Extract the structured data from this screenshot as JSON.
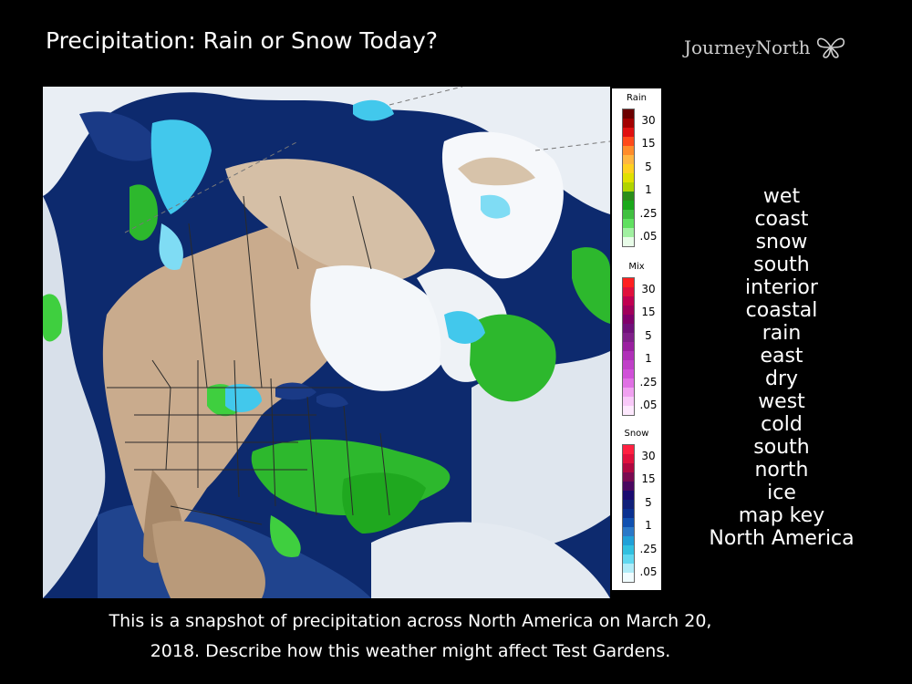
{
  "title": "Precipitation: Rain or Snow Today?",
  "logo": {
    "text": "JourneyNorth",
    "icon": "butterfly-icon"
  },
  "legend": {
    "sections": [
      {
        "title": "Rain",
        "labels": [
          "30",
          "15",
          "5",
          "1",
          ".25",
          ".05"
        ],
        "colors": [
          "#6b0000",
          "#a30000",
          "#e01010",
          "#ff4a1a",
          "#ff8c2a",
          "#ffb640",
          "#ffd020",
          "#e0e000",
          "#b0d400",
          "#2a8e1a",
          "#1aa81a",
          "#40c040",
          "#60e060",
          "#a0f0a0",
          "#e8fce8"
        ]
      },
      {
        "title": "Mix",
        "labels": [
          "30",
          "15",
          "5",
          "1",
          ".25",
          ".05"
        ],
        "colors": [
          "#ff2020",
          "#e0103c",
          "#c00050",
          "#a0005a",
          "#80006a",
          "#70107a",
          "#80208a",
          "#9a20a0",
          "#b030b8",
          "#c040c8",
          "#d050d8",
          "#e070e4",
          "#f0a0f0",
          "#f8c8f8",
          "#fde8fd"
        ]
      },
      {
        "title": "Snow",
        "labels": [
          "30",
          "15",
          "5",
          "1",
          ".25",
          ".05"
        ],
        "colors": [
          "#ff2040",
          "#e0103c",
          "#b00840",
          "#7a0a50",
          "#4a0860",
          "#1a0a70",
          "#10207a",
          "#0a3090",
          "#1050b0",
          "#2a78c8",
          "#20a0d8",
          "#30c0e0",
          "#60d8f0",
          "#b0ecf8",
          "#f0fcff"
        ]
      }
    ]
  },
  "word_list": [
    "wet",
    "coast",
    "snow",
    "south",
    "interior",
    "coastal",
    "rain",
    "east",
    "dry",
    "west",
    "cold",
    "south",
    "north",
    "ice",
    "map key",
    "North America"
  ],
  "caption": {
    "line1": "This is a snapshot of precipitation across North America on March 20,",
    "line2": "2018. Describe how this weather might affect Test Gardens."
  }
}
